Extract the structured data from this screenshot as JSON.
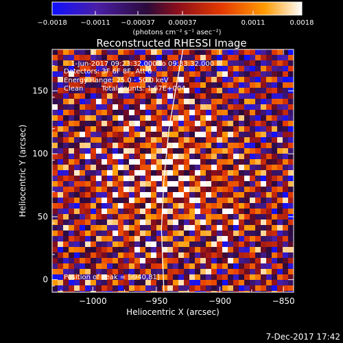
{
  "chart_data": {
    "type": "heatmap",
    "title": "Reconstructed RHESSI Image",
    "xlabel": "Heliocentric X (arcsec)",
    "ylabel": "Heliocentric Y (arcsec)",
    "xlim": [
      -1032,
      -842
    ],
    "ylim": [
      -10,
      183
    ],
    "x_ticks": [
      -1000,
      -950,
      -900,
      -850
    ],
    "x_tick_labels": [
      "−1000",
      "−950",
      "−900",
      "−850"
    ],
    "y_ticks": [
      0,
      50,
      100,
      150
    ],
    "y_tick_labels": [
      "0",
      "50",
      "100",
      "150"
    ],
    "colorbar": {
      "range": [
        -0.0018,
        0.0018
      ],
      "tick_labels": [
        "−0.0018",
        "−0.0011",
        "−0.00037",
        "0.00037",
        "0.0011",
        "0.0018"
      ],
      "units": "(photons cm⁻² s⁻¹ asec⁻²)",
      "colors": [
        "#1010ff",
        "#4a1fa6",
        "#2b0a3a",
        "#8a0e1c",
        "#e53a00",
        "#ff9a00",
        "#ffffff"
      ]
    },
    "annotations": {
      "time_range": "1-Jun-2017 09:23:32.000 to 09:33:32.000",
      "detectors": "Detectors: 3F 6F 8F, Att 0",
      "energy": "Energy Range: 25.0 - 50.0 keV",
      "method": "Clean",
      "counts": "Total counts: 1.67E+004",
      "peak": "Position of Peak = [-940,81]"
    },
    "peak": {
      "x": -940,
      "y": 81
    },
    "limb_curve": [
      [
        -944,
        -10
      ],
      [
        -946,
        40
      ],
      [
        -944,
        80
      ],
      [
        -940,
        120
      ],
      [
        -935,
        150
      ],
      [
        -929,
        183
      ]
    ]
  },
  "footer": {
    "timestamp": "7-Dec-2017 17:42"
  }
}
